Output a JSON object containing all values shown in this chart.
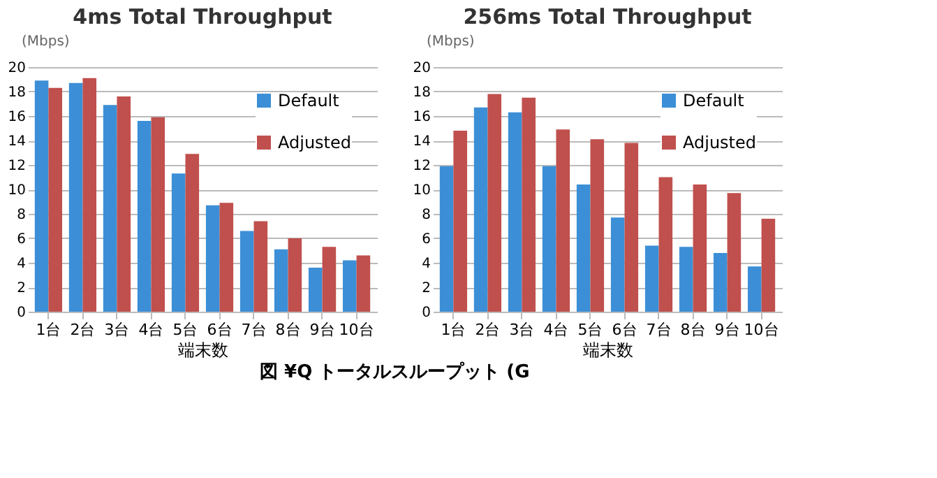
{
  "chart_data": [
    {
      "type": "bar",
      "title": "4ms  Total Throughput",
      "ylabel": "(Mbps)",
      "xlabel": "端末数",
      "categories": [
        "1台",
        "2台",
        "3台",
        "4台",
        "5台",
        "6台",
        "7台",
        "8台",
        "9台",
        "10台"
      ],
      "series": [
        {
          "name": "Default",
          "color": "#3c8fd6",
          "values": [
            18.9,
            18.7,
            16.9,
            15.6,
            11.3,
            8.7,
            6.6,
            5.1,
            3.6,
            4.2
          ]
        },
        {
          "name": "Adjusted",
          "color": "#c0504d",
          "values": [
            18.3,
            19.1,
            17.6,
            15.9,
            12.9,
            8.9,
            7.4,
            6.0,
            5.3,
            4.6
          ]
        }
      ],
      "ylim": [
        0,
        20
      ],
      "yticks": [
        0,
        2,
        4,
        6,
        8,
        10,
        12,
        14,
        16,
        18,
        20
      ],
      "grid": "y",
      "legend": "top right",
      "annotations": [
        "図 ¥Q トータルスループット (G"
      ]
    },
    {
      "type": "bar",
      "title": "256ms  Total Throughput",
      "ylabel": "(Mbps)",
      "xlabel": "端末数",
      "categories": [
        "1台",
        "2台",
        "3台",
        "4台",
        "5台",
        "6台",
        "7台",
        "8台",
        "9台",
        "10台"
      ],
      "series": [
        {
          "name": "Default",
          "color": "#3c8fd6",
          "values": [
            11.9,
            16.7,
            16.3,
            11.9,
            10.4,
            7.7,
            5.4,
            5.3,
            4.8,
            3.7
          ]
        },
        {
          "name": "Adjusted",
          "color": "#c0504d",
          "values": [
            14.8,
            17.8,
            17.5,
            14.9,
            14.1,
            13.8,
            11.0,
            10.4,
            9.7,
            7.6
          ]
        }
      ],
      "ylim": [
        0,
        20
      ],
      "yticks": [
        0,
        2,
        4,
        6,
        8,
        10,
        12,
        14,
        16,
        18,
        20
      ],
      "grid": "y",
      "legend": "top right"
    }
  ]
}
